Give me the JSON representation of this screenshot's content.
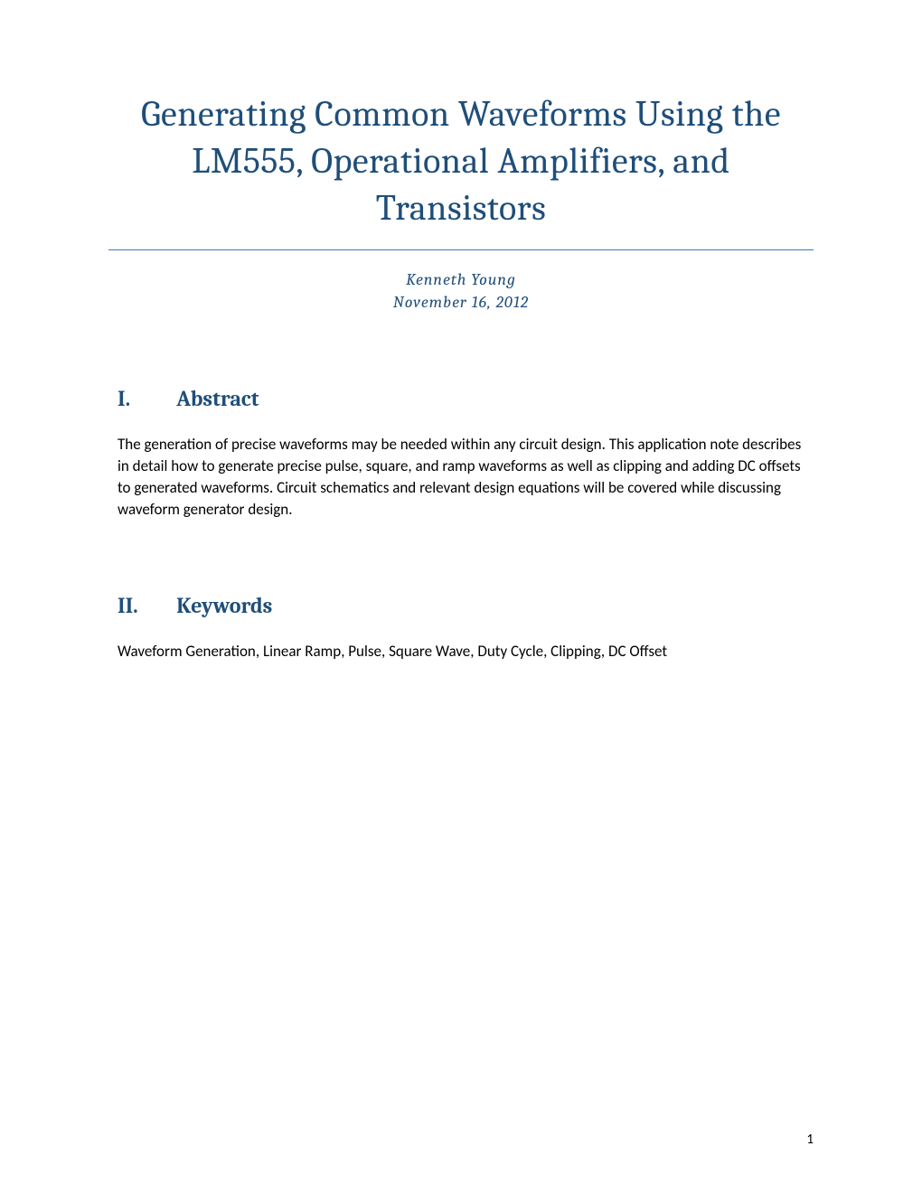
{
  "title": "Generating Common Waveforms Using the LM555, Operational Amplifiers, and Transistors",
  "author": "Kenneth Young",
  "date": "November 16, 2012",
  "sections": [
    {
      "number": "I.",
      "heading": "Abstract",
      "body": "The generation of precise waveforms may be needed within any circuit design. This application note describes in detail how to generate precise pulse, square, and ramp waveforms as well as clipping and adding DC offsets to generated waveforms. Circuit schematics and relevant design equations will be covered while discussing waveform generator design."
    },
    {
      "number": "II.",
      "heading": "Keywords",
      "body": "Waveform Generation, Linear Ramp, Pulse, Square Wave, Duty Cycle, Clipping, DC Offset"
    }
  ],
  "page_number": "1",
  "colors": {
    "title_color": "#1f4e79",
    "heading_color": "#1f4e79",
    "author_color": "#1f4e79",
    "body_color": "#000000",
    "border_color": "#4472c4",
    "background": "#ffffff"
  },
  "typography": {
    "title_fontsize": 40,
    "heading_fontsize": 24,
    "author_fontsize": 18,
    "body_fontsize": 17,
    "title_font": "Cambria",
    "body_font": "Calibri"
  }
}
